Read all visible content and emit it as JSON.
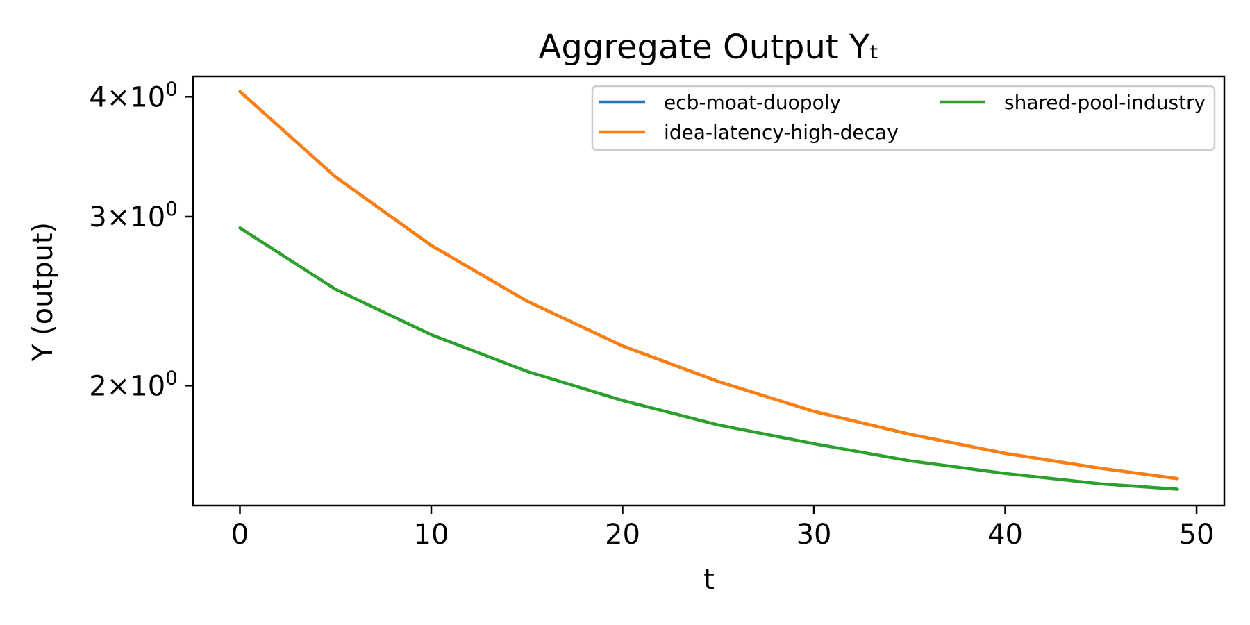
{
  "chart_data": {
    "type": "line",
    "title": "Aggregate Output Yₜ",
    "xlabel": "t",
    "ylabel": "Y (output)",
    "yscale": "log",
    "xlim": [
      -2.45,
      51.45
    ],
    "ylim": [
      1.5,
      4.2
    ],
    "x_ticks": [
      0,
      10,
      20,
      30,
      40,
      50
    ],
    "x_tick_labels": [
      "0",
      "10",
      "20",
      "30",
      "40",
      "50"
    ],
    "y_ticks": [
      2,
      3,
      4
    ],
    "y_tick_labels": [
      {
        "mantissa": "2",
        "times": "×",
        "base": "10",
        "exp": "0"
      },
      {
        "mantissa": "3",
        "times": "×",
        "base": "10",
        "exp": "0"
      },
      {
        "mantissa": "4",
        "times": "×",
        "base": "10",
        "exp": "0"
      }
    ],
    "grid": false,
    "legend_position": "top-right",
    "legend_columns": 2,
    "series": [
      {
        "name": "ecb-moat-duopoly",
        "color": "#1f77b4",
        "x": [
          0,
          5,
          10,
          15,
          20,
          25,
          30,
          35,
          40,
          45,
          49
        ],
        "y": [
          4.05,
          3.3,
          2.8,
          2.45,
          2.2,
          2.02,
          1.88,
          1.78,
          1.7,
          1.64,
          1.6
        ]
      },
      {
        "name": "idea-latency-high-decay",
        "color": "#ff7f0e",
        "x": [
          0,
          5,
          10,
          15,
          20,
          25,
          30,
          35,
          40,
          45,
          49
        ],
        "y": [
          4.05,
          3.3,
          2.8,
          2.45,
          2.2,
          2.02,
          1.88,
          1.78,
          1.7,
          1.64,
          1.6
        ]
      },
      {
        "name": "shared-pool-industry",
        "color": "#2ca02c",
        "x": [
          0,
          5,
          10,
          15,
          20,
          25,
          30,
          35,
          40,
          45,
          49
        ],
        "y": [
          2.92,
          2.52,
          2.26,
          2.07,
          1.93,
          1.82,
          1.74,
          1.67,
          1.62,
          1.58,
          1.56
        ]
      }
    ]
  }
}
